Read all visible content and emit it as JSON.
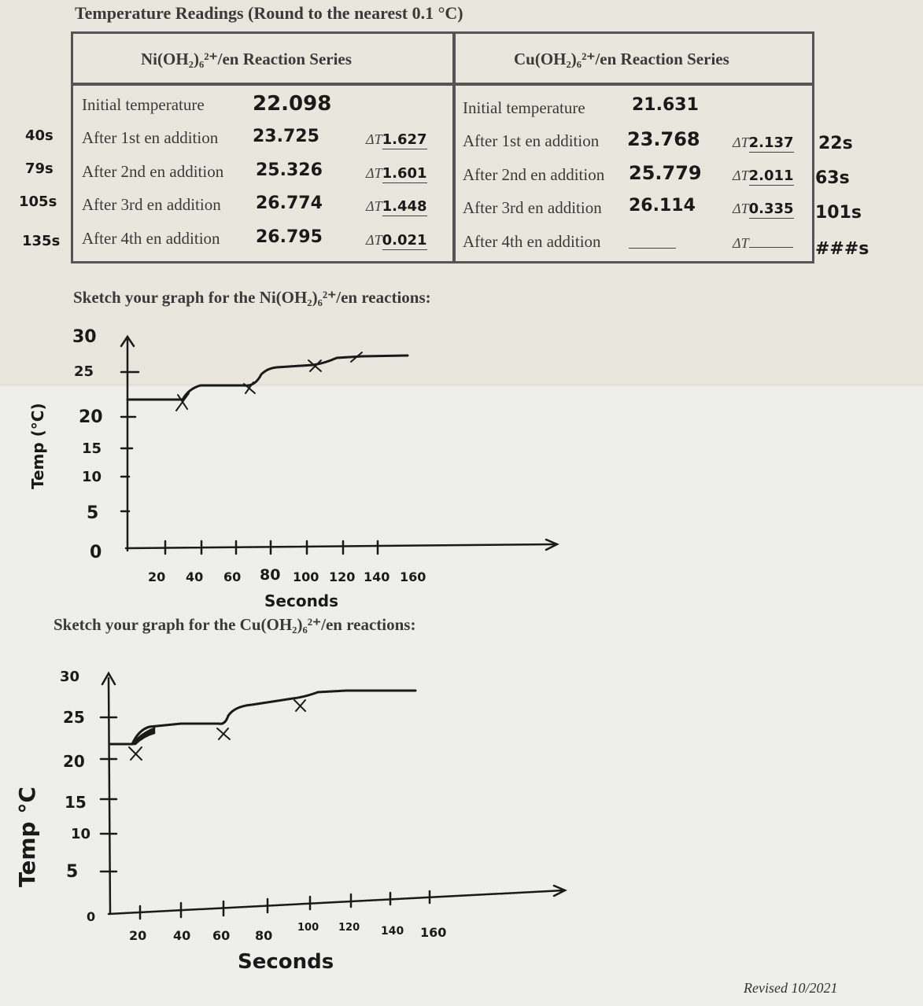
{
  "title": "Temperature Readings (Round to the nearest 0.1 °C)",
  "table": {
    "ni_header": "Ni(OH₂)₆²⁺/en Reaction Series",
    "cu_header": "Cu(OH₂)₆²⁺/en Reaction Series",
    "labels": [
      "Initial temperature",
      "After 1st en addition",
      "After 2nd en addition",
      "After 3rd en addition",
      "After 4th en addition"
    ],
    "delta_symbol": "ΔT",
    "ni_values": [
      "22.098",
      "23.725",
      "25.326",
      "26.774",
      "26.795"
    ],
    "ni_deltas": [
      "1.627",
      "1.601",
      "1.448",
      "0.021"
    ],
    "cu_values": [
      "21.631",
      "23.768",
      "25.779",
      "26.114",
      ""
    ],
    "cu_deltas": [
      "2.137",
      "2.011",
      "0.335",
      ""
    ],
    "ni_times": [
      "40s",
      "79s",
      "105s",
      "135s"
    ],
    "cu_times": [
      "22s",
      "63s",
      "101s",
      "###s"
    ]
  },
  "ni_graph": {
    "title": "Sketch your graph for the Ni(OH₂)₆²⁺/en reactions:",
    "ylabel": "Temp (°C)",
    "xlabel": "Seconds",
    "yticks": [
      "30",
      "25",
      "20",
      "15",
      "10",
      "5",
      "0"
    ],
    "xticks": [
      "20",
      "40",
      "60",
      "80",
      "100",
      "120",
      "140",
      "160"
    ]
  },
  "cu_graph": {
    "title": "Sketch your graph for the Cu(OH₂)₆²⁺/en reactions:",
    "ylabel": "Temp °C",
    "xlabel": "Seconds",
    "yticks": [
      "30",
      "25",
      "20",
      "15",
      "10",
      "5",
      "0"
    ],
    "xticks": [
      "20",
      "40",
      "60",
      "80",
      "100",
      "120",
      "140",
      "160"
    ]
  },
  "footer": "Revised 10/2021"
}
